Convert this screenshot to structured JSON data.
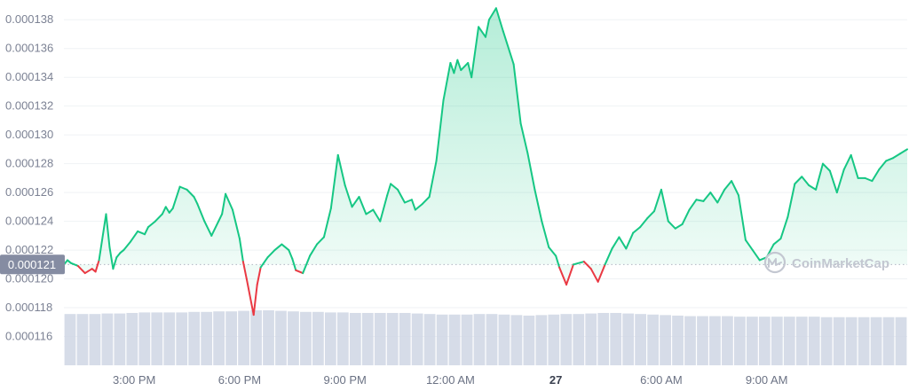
{
  "chart_data": {
    "type": "area",
    "watermark": "CoinMarketCap",
    "current_price_label": "0.000121",
    "reference_price": 0.000121,
    "y_axis": {
      "ticks": [
        0.000116,
        0.000118,
        0.00012,
        0.000122,
        0.000124,
        0.000126,
        0.000128,
        0.00013,
        0.000132,
        0.000134,
        0.000136,
        0.000138
      ],
      "tick_labels": [
        "0.000116",
        "0.000118",
        "0.000120",
        "0.000122",
        "0.000124",
        "0.000126",
        "0.000128",
        "0.000130",
        "0.000132",
        "0.000134",
        "0.000136",
        "0.000138"
      ],
      "ylim": [
        0.000114,
        0.000139
      ]
    },
    "x_axis": {
      "range_hours": [
        1.0,
        25.0
      ],
      "ticks": [
        {
          "hour": 3,
          "label": "3:00 PM",
          "bold": false
        },
        {
          "hour": 6,
          "label": "6:00 PM",
          "bold": false
        },
        {
          "hour": 9,
          "label": "9:00 PM",
          "bold": false
        },
        {
          "hour": 12,
          "label": "12:00 AM",
          "bold": false
        },
        {
          "hour": 15,
          "label": "27",
          "bold": true
        },
        {
          "hour": 18,
          "label": "6:00 AM",
          "bold": false
        },
        {
          "hour": 21,
          "label": "9:00 AM",
          "bold": false
        }
      ]
    },
    "colors": {
      "up": "#16c784",
      "down": "#ea3943",
      "volume": "#cfd6e4",
      "grid": "#eff2f5",
      "ref_line": "#b0b5c2",
      "price_tag": "#858ca2"
    },
    "series": [
      {
        "x": [
          1.0,
          1.1,
          1.2,
          1.4,
          1.6,
          1.8,
          1.9,
          2.0,
          2.2,
          2.3,
          2.4,
          2.5,
          2.6,
          2.7,
          2.9,
          3.1,
          3.3,
          3.4,
          3.6,
          3.8,
          3.9,
          4.0,
          4.1,
          4.3,
          4.5,
          4.7,
          4.8,
          5.0,
          5.2,
          5.4,
          5.5,
          5.6,
          5.8,
          6.0,
          6.1,
          6.2,
          6.4,
          6.5,
          6.6,
          6.8,
          7.0,
          7.2,
          7.4,
          7.5,
          7.6,
          7.8,
          8.0,
          8.2,
          8.4,
          8.6,
          8.8,
          9.0,
          9.2,
          9.4,
          9.6,
          9.8,
          10.0,
          10.2,
          10.3,
          10.5,
          10.7,
          10.9,
          11.0,
          11.2,
          11.4,
          11.6,
          11.8,
          12.0,
          12.1,
          12.2,
          12.3,
          12.5,
          12.6,
          12.8,
          13.0,
          13.1,
          13.3,
          13.5,
          13.8,
          14.0,
          14.2,
          14.4,
          14.6,
          14.8,
          15.0,
          15.1,
          15.3,
          15.5,
          15.8,
          16.0,
          16.2,
          16.4,
          16.6,
          16.8,
          17.0,
          17.2,
          17.4,
          17.6,
          17.8,
          18.0,
          18.2,
          18.4,
          18.6,
          18.8,
          19.0,
          19.2,
          19.4,
          19.6,
          19.8,
          20.0,
          20.2,
          20.4,
          20.6,
          20.8,
          21.0,
          21.2,
          21.4,
          21.6,
          21.8,
          22.0,
          22.2,
          22.4,
          22.6,
          22.8,
          23.0,
          23.2,
          23.4,
          23.6,
          23.8,
          24.0,
          24.2,
          24.4,
          24.6,
          24.8,
          25.0
        ],
        "y": [
          0.000121,
          0.0001213,
          0.0001211,
          0.0001209,
          0.0001204,
          0.0001207,
          0.0001205,
          0.0001213,
          0.0001245,
          0.0001222,
          0.0001207,
          0.0001215,
          0.0001218,
          0.000122,
          0.0001226,
          0.0001233,
          0.0001231,
          0.0001236,
          0.000124,
          0.0001245,
          0.000125,
          0.0001246,
          0.0001249,
          0.0001264,
          0.0001262,
          0.0001257,
          0.0001252,
          0.000124,
          0.000123,
          0.000124,
          0.0001245,
          0.0001259,
          0.0001248,
          0.0001228,
          0.0001212,
          0.00012,
          0.0001175,
          0.0001196,
          0.0001208,
          0.0001215,
          0.000122,
          0.0001224,
          0.000122,
          0.0001214,
          0.0001206,
          0.0001204,
          0.0001216,
          0.0001224,
          0.0001229,
          0.0001249,
          0.0001286,
          0.0001265,
          0.000125,
          0.0001257,
          0.0001245,
          0.0001248,
          0.000124,
          0.0001258,
          0.0001266,
          0.0001262,
          0.0001253,
          0.0001255,
          0.0001248,
          0.0001252,
          0.0001257,
          0.0001282,
          0.0001324,
          0.000135,
          0.0001343,
          0.0001352,
          0.0001345,
          0.000135,
          0.000134,
          0.0001375,
          0.0001368,
          0.000138,
          0.0001388,
          0.0001372,
          0.0001349,
          0.0001308,
          0.0001287,
          0.0001262,
          0.000124,
          0.0001222,
          0.0001216,
          0.0001208,
          0.0001196,
          0.000121,
          0.0001212,
          0.0001207,
          0.0001198,
          0.000121,
          0.0001221,
          0.0001229,
          0.0001221,
          0.0001232,
          0.0001236,
          0.0001242,
          0.0001247,
          0.0001262,
          0.000124,
          0.0001235,
          0.0001238,
          0.0001248,
          0.0001255,
          0.0001254,
          0.000126,
          0.0001253,
          0.0001262,
          0.0001268,
          0.0001258,
          0.0001227,
          0.000122,
          0.0001213,
          0.0001215,
          0.0001224,
          0.0001228,
          0.0001243,
          0.0001266,
          0.0001271,
          0.0001265,
          0.0001262,
          0.000128,
          0.0001275,
          0.000126,
          0.0001276,
          0.0001286,
          0.000127,
          0.000127,
          0.0001268,
          0.0001276,
          0.0001282,
          0.0001284,
          0.0001287,
          0.000129
        ]
      }
    ],
    "volume": [
      0.97,
      0.97,
      0.97,
      0.98,
      0.98,
      0.99,
      1.0,
      1.0,
      1.0,
      1.0,
      1.01,
      1.01,
      1.02,
      1.02,
      1.03,
      1.04,
      1.04,
      1.03,
      1.02,
      1.01,
      1.01,
      1.0,
      1.0,
      0.99,
      0.99,
      0.99,
      0.99,
      0.99,
      0.98,
      0.97,
      0.96,
      0.96,
      0.96,
      0.97,
      0.97,
      0.96,
      0.95,
      0.94,
      0.95,
      0.96,
      0.97,
      0.97,
      0.98,
      0.99,
      0.99,
      0.98,
      0.97,
      0.96,
      0.95,
      0.94,
      0.93,
      0.93,
      0.93,
      0.93,
      0.92,
      0.92,
      0.92,
      0.92,
      0.92,
      0.92,
      0.92,
      0.91,
      0.91,
      0.91,
      0.91,
      0.91,
      0.91,
      0.91
    ]
  }
}
